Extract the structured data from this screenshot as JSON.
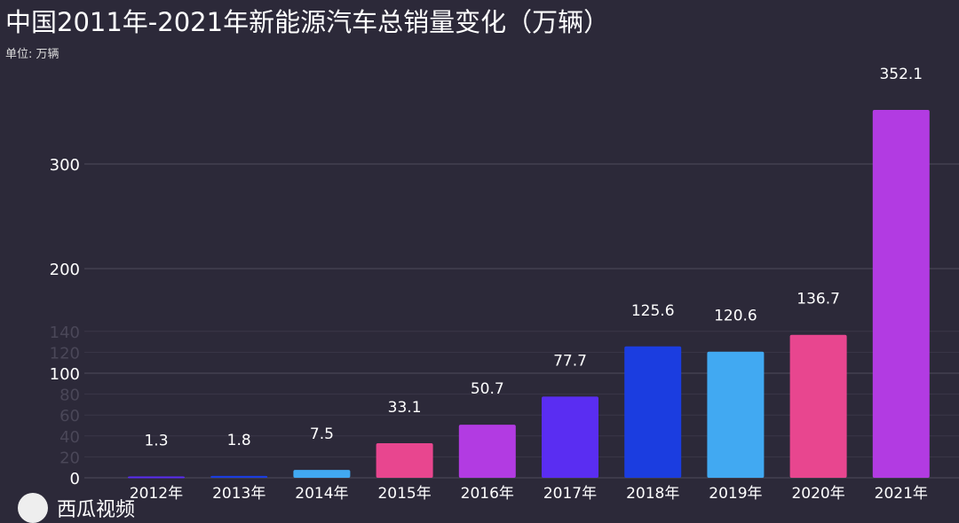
{
  "chart_data": {
    "type": "bar",
    "title": "中国2011年-2021年新能源汽车总销量变化（万辆）",
    "subtitle": "单位: 万辆",
    "categories": [
      "2012年",
      "2013年",
      "2014年",
      "2015年",
      "2016年",
      "2017年",
      "2018年",
      "2019年",
      "2020年",
      "2021年"
    ],
    "values": [
      1.3,
      1.8,
      7.5,
      33.1,
      50.7,
      77.7,
      125.6,
      120.6,
      136.7,
      352.1
    ],
    "colors": [
      "#5a2df2",
      "#1b3de0",
      "#41a9f2",
      "#e8468f",
      "#b23be2",
      "#5a2df2",
      "#1b3de0",
      "#41a9f2",
      "#e8468f",
      "#b23be2"
    ],
    "yticks": [
      0,
      100,
      200,
      300
    ],
    "ghost_yticks": [
      20,
      40,
      60,
      80,
      120,
      140
    ],
    "ylim": [
      0,
      352.1
    ],
    "grid": true,
    "xlabel": "",
    "ylabel": ""
  },
  "watermark": "西瓜视频"
}
